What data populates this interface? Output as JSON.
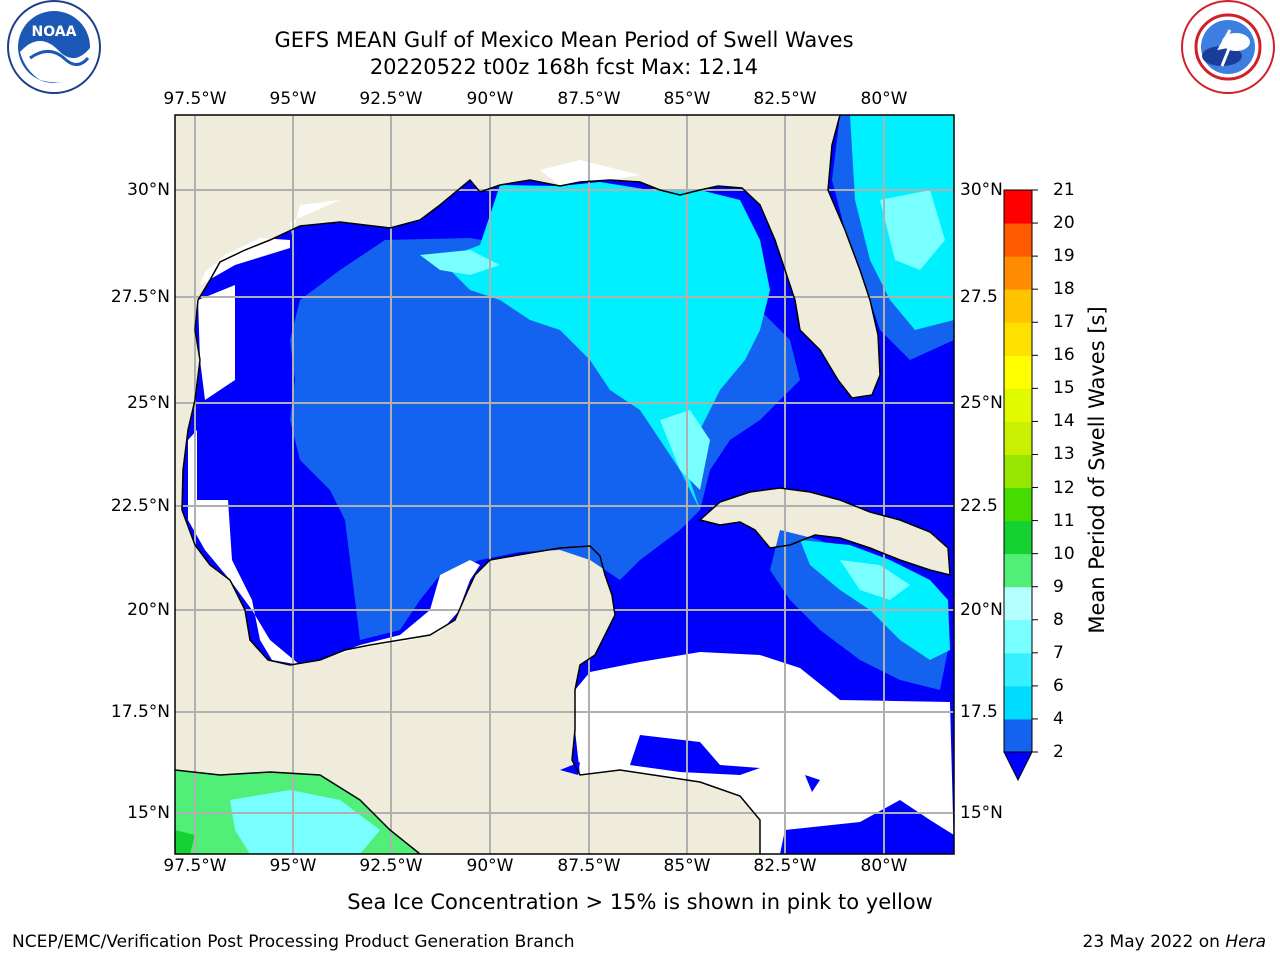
{
  "header": {
    "title_line1": "GEFS MEAN Gulf of Mexico Mean Period of Swell Waves",
    "title_line2": "20220522 t00z 168h fcst   Max: 12.14"
  },
  "map": {
    "lon_labels": [
      "97.5°W",
      "95°W",
      "92.5°W",
      "90°W",
      "87.5°W",
      "85°W",
      "82.5°W",
      "80°W"
    ],
    "lat_labels_left": [
      "30°N",
      "27.5°N",
      "25°N",
      "22.5°N",
      "20°N",
      "17.5°N",
      "15°N"
    ],
    "lat_labels_right": [
      "30°N",
      "27.5",
      "25°N",
      "22.5",
      "20°N",
      "17.5",
      "15°N"
    ],
    "colors": {
      "land": "#efecdb",
      "grid": "#b0b0b0",
      "coast": "#000000"
    }
  },
  "colorbar": {
    "title": "Mean Period of Swell Waves [s]",
    "ticks": [
      "2",
      "4",
      "6",
      "7",
      "8",
      "9",
      "10",
      "11",
      "12",
      "13",
      "14",
      "15",
      "16",
      "17",
      "18",
      "19",
      "20",
      "21"
    ],
    "colors": [
      "#1462f0",
      "#00dcff",
      "#37f0ff",
      "#78ffff",
      "#b4ffff",
      "#50f078",
      "#14d232",
      "#46dc00",
      "#96e600",
      "#c8f000",
      "#e1fa00",
      "#ffff00",
      "#ffe100",
      "#ffc300",
      "#ff8c00",
      "#ff5a00",
      "#ff0000"
    ],
    "extend_color": "#0000ff"
  },
  "subtitle": "Sea Ice Concentration > 15% is shown in pink to yellow",
  "footer": {
    "left": "NCEP/EMC/Verification Post Processing Product Generation Branch",
    "right_text": "23 May 2022 on ",
    "right_host": "Hera"
  },
  "logos": {
    "left": "NOAA",
    "right": "NATIONAL WEATHER SERVICE"
  }
}
